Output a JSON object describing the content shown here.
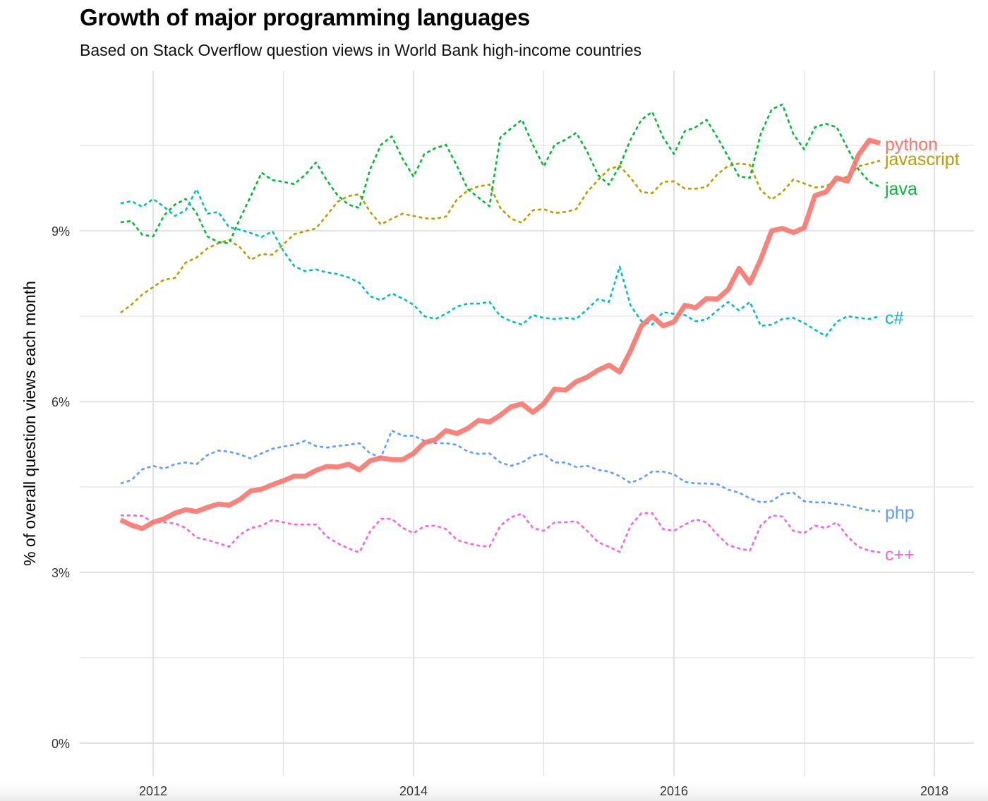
{
  "chart_data": {
    "type": "line",
    "title": "Growth of major programming languages",
    "subtitle": "Based on Stack Overflow question views in World Bank high-income countries",
    "xlabel": "",
    "ylabel": "% of overall question views each month",
    "xlim": [
      "2011-07",
      "2018-03"
    ],
    "ylim": [
      0,
      11.5
    ],
    "x_ticks": [
      "2012",
      "2014",
      "2016",
      "2018"
    ],
    "y_ticks": [
      "0%",
      "3%",
      "6%",
      "9%"
    ],
    "y_tick_values": [
      0,
      3,
      6,
      9
    ],
    "grid": true,
    "legend": "direct labels at line ends (right)",
    "x": [
      "2011-10",
      "2011-11",
      "2011-12",
      "2012-01",
      "2012-02",
      "2012-03",
      "2012-04",
      "2012-05",
      "2012-06",
      "2012-07",
      "2012-08",
      "2012-09",
      "2012-10",
      "2012-11",
      "2012-12",
      "2013-01",
      "2013-02",
      "2013-03",
      "2013-04",
      "2013-05",
      "2013-06",
      "2013-07",
      "2013-08",
      "2013-09",
      "2013-10",
      "2013-11",
      "2013-12",
      "2014-01",
      "2014-02",
      "2014-03",
      "2014-04",
      "2014-05",
      "2014-06",
      "2014-07",
      "2014-08",
      "2014-09",
      "2014-10",
      "2014-11",
      "2014-12",
      "2015-01",
      "2015-02",
      "2015-03",
      "2015-04",
      "2015-05",
      "2015-06",
      "2015-07",
      "2015-08",
      "2015-09",
      "2015-10",
      "2015-11",
      "2015-12",
      "2016-01",
      "2016-02",
      "2016-03",
      "2016-04",
      "2016-05",
      "2016-06",
      "2016-07",
      "2016-08",
      "2016-09",
      "2016-10",
      "2016-11",
      "2016-12",
      "2017-01",
      "2017-02",
      "2017-03",
      "2017-04",
      "2017-05",
      "2017-06",
      "2017-07",
      "2017-08"
    ],
    "series": [
      {
        "name": "python",
        "color": "#F8766D",
        "style": "solid-thick",
        "values": [
          3.92,
          3.83,
          3.77,
          3.88,
          3.94,
          4.04,
          4.1,
          4.07,
          4.14,
          4.2,
          4.18,
          4.28,
          4.43,
          4.46,
          4.54,
          4.61,
          4.69,
          4.69,
          4.79,
          4.86,
          4.85,
          4.9,
          4.8,
          4.96,
          5.01,
          4.98,
          4.98,
          5.09,
          5.28,
          5.33,
          5.49,
          5.44,
          5.53,
          5.67,
          5.64,
          5.76,
          5.91,
          5.96,
          5.81,
          5.96,
          6.22,
          6.2,
          6.35,
          6.43,
          6.55,
          6.64,
          6.52,
          6.89,
          7.33,
          7.5,
          7.33,
          7.4,
          7.69,
          7.65,
          7.81,
          7.8,
          7.97,
          8.34,
          8.08,
          8.5,
          9.0,
          9.04,
          8.97,
          9.05,
          9.62,
          9.68,
          9.93,
          9.87,
          10.33,
          10.59,
          10.54
        ]
      },
      {
        "name": "javascript",
        "color": "#B79F00",
        "style": "dashed",
        "values": [
          7.56,
          7.7,
          7.88,
          8.01,
          8.14,
          8.17,
          8.44,
          8.53,
          8.69,
          8.78,
          8.84,
          8.71,
          8.49,
          8.59,
          8.58,
          8.76,
          8.94,
          8.99,
          9.04,
          9.27,
          9.51,
          9.61,
          9.64,
          9.33,
          9.11,
          9.21,
          9.3,
          9.26,
          9.22,
          9.21,
          9.25,
          9.55,
          9.71,
          9.78,
          9.81,
          9.4,
          9.21,
          9.14,
          9.36,
          9.38,
          9.31,
          9.33,
          9.38,
          9.68,
          9.89,
          10.08,
          10.14,
          9.93,
          9.68,
          9.66,
          9.86,
          9.87,
          9.74,
          9.74,
          9.77,
          9.99,
          10.14,
          10.18,
          10.16,
          9.71,
          9.55,
          9.68,
          9.9,
          9.83,
          9.76,
          9.78,
          9.89,
          9.95,
          10.13,
          10.18,
          10.23
        ]
      },
      {
        "name": "java",
        "color": "#00BA38",
        "style": "dashed",
        "values": [
          9.15,
          9.17,
          8.93,
          8.9,
          9.27,
          9.46,
          9.56,
          9.31,
          8.9,
          8.8,
          8.78,
          9.21,
          9.61,
          10.02,
          9.89,
          9.86,
          9.82,
          9.98,
          10.2,
          9.89,
          9.62,
          9.46,
          9.4,
          10.08,
          10.51,
          10.66,
          10.26,
          9.95,
          10.35,
          10.45,
          10.51,
          10.14,
          9.73,
          9.58,
          9.43,
          10.64,
          10.8,
          10.95,
          10.51,
          10.13,
          10.51,
          10.6,
          10.72,
          10.39,
          9.98,
          9.81,
          10.14,
          10.6,
          10.95,
          11.09,
          10.64,
          10.35,
          10.75,
          10.82,
          10.95,
          10.64,
          10.3,
          9.95,
          9.93,
          10.7,
          11.13,
          11.22,
          10.7,
          10.43,
          10.82,
          10.88,
          10.82,
          10.45,
          10.08,
          9.86,
          9.77
        ]
      },
      {
        "name": "c#",
        "color": "#00BFC4",
        "style": "dashed",
        "values": [
          9.48,
          9.52,
          9.42,
          9.56,
          9.42,
          9.26,
          9.36,
          9.73,
          9.3,
          9.33,
          9.06,
          9.02,
          8.96,
          8.89,
          8.99,
          8.65,
          8.38,
          8.29,
          8.32,
          8.27,
          8.24,
          8.18,
          8.09,
          7.85,
          7.78,
          7.9,
          7.81,
          7.7,
          7.5,
          7.45,
          7.54,
          7.67,
          7.72,
          7.72,
          7.75,
          7.5,
          7.41,
          7.35,
          7.52,
          7.47,
          7.45,
          7.47,
          7.45,
          7.62,
          7.8,
          7.75,
          8.37,
          7.69,
          7.41,
          7.35,
          7.57,
          7.54,
          7.52,
          7.41,
          7.44,
          7.6,
          7.75,
          7.6,
          7.75,
          7.33,
          7.35,
          7.45,
          7.47,
          7.38,
          7.26,
          7.15,
          7.4,
          7.5,
          7.47,
          7.45,
          7.5
        ]
      },
      {
        "name": "php",
        "color": "#619CFF",
        "style": "dashed",
        "values": [
          4.56,
          4.62,
          4.81,
          4.87,
          4.82,
          4.9,
          4.93,
          4.9,
          5.06,
          5.14,
          5.12,
          5.07,
          5.0,
          5.09,
          5.17,
          5.21,
          5.24,
          5.31,
          5.22,
          5.19,
          5.22,
          5.24,
          5.27,
          5.09,
          5.02,
          5.49,
          5.4,
          5.4,
          5.31,
          5.27,
          5.27,
          5.24,
          5.12,
          5.08,
          5.09,
          4.93,
          4.87,
          4.93,
          5.05,
          5.08,
          4.93,
          4.93,
          4.85,
          4.87,
          4.8,
          4.77,
          4.69,
          4.57,
          4.65,
          4.77,
          4.77,
          4.72,
          4.59,
          4.56,
          4.56,
          4.55,
          4.45,
          4.4,
          4.3,
          4.23,
          4.25,
          4.38,
          4.4,
          4.25,
          4.23,
          4.23,
          4.2,
          4.18,
          4.13,
          4.09,
          4.07
        ]
      },
      {
        "name": "c++",
        "color": "#F564E3",
        "style": "dashed",
        "values": [
          4.0,
          4.0,
          3.99,
          3.88,
          3.88,
          3.86,
          3.78,
          3.61,
          3.57,
          3.51,
          3.45,
          3.66,
          3.78,
          3.82,
          3.92,
          3.88,
          3.84,
          3.84,
          3.84,
          3.63,
          3.51,
          3.42,
          3.35,
          3.72,
          3.94,
          3.94,
          3.78,
          3.69,
          3.81,
          3.82,
          3.76,
          3.57,
          3.51,
          3.47,
          3.45,
          3.82,
          3.97,
          4.03,
          3.78,
          3.73,
          3.88,
          3.88,
          3.9,
          3.73,
          3.53,
          3.45,
          3.36,
          3.82,
          4.04,
          4.04,
          3.76,
          3.73,
          3.84,
          3.93,
          3.88,
          3.66,
          3.48,
          3.42,
          3.38,
          3.82,
          4.0,
          3.98,
          3.73,
          3.69,
          3.82,
          3.78,
          3.88,
          3.63,
          3.45,
          3.38,
          3.35
        ]
      }
    ]
  }
}
